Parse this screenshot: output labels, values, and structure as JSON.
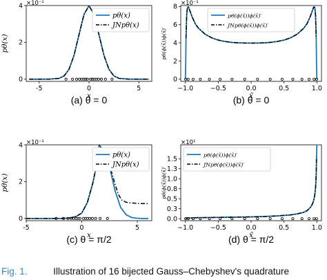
{
  "chart_data": [
    {
      "type": "line",
      "subcaption": "(a) θ = 0",
      "xlabel": "x",
      "ylabel": "pθ(x)",
      "xlim": [
        -6.3,
        6.3
      ],
      "ylim": [
        -0.12,
        4.0
      ],
      "scale_label": "×10⁻¹",
      "xticks": [
        -5,
        0,
        5
      ],
      "yticks": [
        0,
        2,
        4
      ],
      "legend": "top-right",
      "series": [
        {
          "name": "pθ(x)",
          "color": "#1f77b4",
          "style": "solid",
          "x": [
            -6,
            -5,
            -4,
            -3,
            -2.5,
            -2,
            -1.5,
            -1,
            -0.5,
            0,
            0.5,
            1,
            1.5,
            2,
            2.5,
            3,
            4,
            5,
            6
          ],
          "y": [
            0,
            0,
            0.001,
            0.044,
            0.175,
            0.54,
            1.295,
            2.42,
            3.521,
            3.989,
            3.521,
            2.42,
            1.295,
            0.54,
            0.175,
            0.044,
            0.001,
            0,
            0
          ]
        },
        {
          "name": "JNpθ(x)",
          "color": "#000000",
          "style": "dashdot",
          "x": [
            -6,
            -5,
            -4,
            -3,
            -2.5,
            -2,
            -1.5,
            -1,
            -0.5,
            0,
            0.5,
            1,
            1.5,
            2,
            2.5,
            3,
            4,
            5,
            6
          ],
          "y": [
            0,
            0,
            0.001,
            0.044,
            0.175,
            0.54,
            1.295,
            2.42,
            3.521,
            3.989,
            3.521,
            2.42,
            1.295,
            0.54,
            0.175,
            0.044,
            0.001,
            0,
            0
          ]
        }
      ],
      "nodes_x": [
        -2.31,
        -1.65,
        -1.25,
        -0.96,
        -0.72,
        -0.51,
        -0.33,
        -0.16,
        0.16,
        0.33,
        0.51,
        0.72,
        0.96,
        1.25,
        1.65,
        2.31
      ]
    },
    {
      "type": "line",
      "subcaption": "(b) θ = 0",
      "xlabel": "x̃",
      "ylabel": "pθ(ϕ(x̃))ϕ(x̃)′",
      "xlim": [
        -1.07,
        1.07
      ],
      "ylim": [
        -0.24,
        8.1
      ],
      "scale_label": "×10⁻¹",
      "xticks": [
        -1.0,
        -0.5,
        0.0,
        0.5,
        1.0
      ],
      "yticks": [
        0,
        2,
        4,
        6,
        8
      ],
      "legend": "top-center",
      "series": [
        {
          "name": "pθ(ϕ(x̃))ϕ(x̃)′",
          "color": "#1f77b4",
          "style": "solid",
          "x": [
            -1.0,
            -0.995,
            -0.99,
            -0.98,
            -0.97,
            -0.96,
            -0.95,
            -0.93,
            -0.9,
            -0.85,
            -0.8,
            -0.7,
            -0.6,
            -0.5,
            -0.4,
            -0.3,
            -0.2,
            -0.1,
            0,
            0.1,
            0.2,
            0.3,
            0.4,
            0.5,
            0.6,
            0.7,
            0.8,
            0.85,
            0.9,
            0.93,
            0.95,
            0.96,
            0.97,
            0.98,
            0.99,
            0.995,
            1.0
          ],
          "y": [
            0,
            1.5,
            4.5,
            7.0,
            7.8,
            7.95,
            7.9,
            7.5,
            6.9,
            6.1,
            5.6,
            4.95,
            4.55,
            4.3,
            4.15,
            4.05,
            4.0,
            3.98,
            3.97,
            3.98,
            4.0,
            4.05,
            4.15,
            4.3,
            4.55,
            4.95,
            5.6,
            6.1,
            6.9,
            7.5,
            7.9,
            7.95,
            7.8,
            7.0,
            4.5,
            1.5,
            0
          ]
        },
        {
          "name": "JNpθ(ϕ(x̃))ϕ(x̃)′",
          "color": "#000000",
          "style": "dashdot",
          "x": [
            -0.99,
            -0.98,
            -0.97,
            -0.96,
            -0.95,
            -0.93,
            -0.9,
            -0.85,
            -0.8,
            -0.7,
            -0.6,
            -0.5,
            -0.4,
            -0.3,
            -0.2,
            -0.1,
            0,
            0.1,
            0.2,
            0.3,
            0.4,
            0.5,
            0.6,
            0.7,
            0.8,
            0.85,
            0.9,
            0.93,
            0.95,
            0.96,
            0.97,
            0.98,
            0.99
          ],
          "y": [
            4.5,
            7.0,
            7.8,
            7.95,
            7.9,
            7.5,
            6.9,
            6.1,
            5.6,
            4.95,
            4.55,
            4.3,
            4.15,
            4.05,
            4.0,
            3.98,
            3.97,
            3.98,
            4.0,
            4.05,
            4.15,
            4.3,
            4.55,
            4.95,
            5.6,
            6.1,
            6.9,
            7.5,
            7.9,
            7.95,
            7.8,
            7.0,
            4.5
          ]
        }
      ],
      "nodes_x": [
        -0.995,
        -0.957,
        -0.882,
        -0.773,
        -0.634,
        -0.471,
        -0.29,
        -0.098,
        0.098,
        0.29,
        0.471,
        0.634,
        0.773,
        0.882,
        0.957,
        0.995
      ]
    },
    {
      "type": "line",
      "subcaption": "(c) θ = π/2",
      "xlabel": "x",
      "ylabel": "pθ(x)",
      "xlim": [
        -5.0,
        6.3
      ],
      "ylim": [
        -0.12,
        4.0
      ],
      "scale_label": "×10⁻¹",
      "xticks": [
        -5,
        0,
        5
      ],
      "yticks": [
        0,
        2,
        4
      ],
      "legend": "top-right",
      "series": [
        {
          "name": "pθ(x)",
          "color": "#1f77b4",
          "style": "solid",
          "x": [
            -5,
            -4,
            -3,
            -2,
            -1.5,
            -1,
            -0.5,
            0,
            0.5,
            1,
            1.2,
            1.57,
            2,
            2.5,
            3,
            3.5,
            4,
            4.5,
            5,
            5.5,
            6
          ],
          "y": [
            0,
            0,
            0,
            0.002,
            0.009,
            0.034,
            0.115,
            0.293,
            0.86,
            1.94,
            2.52,
            3.989,
            3.63,
            2.8,
            1.5,
            0.6,
            0.2,
            0.05,
            0.01,
            0,
            0
          ]
        },
        {
          "name": "JNpθ(x)",
          "color": "#000000",
          "style": "dashdot",
          "x": [
            -5,
            -4,
            -3,
            -2,
            -1.5,
            -1,
            -0.5,
            0,
            0.5,
            1,
            1.2,
            1.57,
            2,
            2.5,
            3,
            3.3,
            3.6,
            4,
            4.5,
            5,
            5.5,
            6
          ],
          "y": [
            0,
            0,
            0,
            0.002,
            0.009,
            0.034,
            0.115,
            0.293,
            0.86,
            1.94,
            2.52,
            3.989,
            3.63,
            2.9,
            1.85,
            1.3,
            1.0,
            0.88,
            0.84,
            0.82,
            0.81,
            0.8
          ]
        }
      ],
      "nodes_x": [
        -2.31,
        -1.65,
        -1.25,
        -0.96,
        -0.72,
        -0.51,
        -0.33,
        -0.16,
        0.16,
        0.33,
        0.51,
        0.72,
        0.96,
        1.25,
        1.65,
        2.31
      ]
    },
    {
      "type": "line",
      "subcaption": "(d) θ = π/2",
      "xlabel": "x̃",
      "ylabel": "pθ(ϕ(x̃))ϕ(x̃)′",
      "xlim": [
        -1.07,
        1.07
      ],
      "ylim": [
        -0.05,
        1.85
      ],
      "scale_label": "×10¹",
      "xticks": [
        -1.0,
        -0.5,
        0.0,
        0.5,
        1.0
      ],
      "yticks": [
        0.0,
        0.25,
        0.5,
        0.75,
        1.0,
        1.25,
        1.5
      ],
      "legend": "top-left",
      "series": [
        {
          "name": "pθ(ϕ(x̃))ϕ(x̃)′",
          "color": "#1f77b4",
          "style": "solid",
          "x": [
            -1.0,
            -0.9,
            -0.8,
            -0.6,
            -0.4,
            -0.2,
            0,
            0.2,
            0.4,
            0.6,
            0.7,
            0.8,
            0.85,
            0.9,
            0.93,
            0.95,
            0.96,
            0.97,
            0.98,
            0.985,
            0.99,
            0.995,
            1.0
          ],
          "y": [
            0.015,
            0.02,
            0.025,
            0.03,
            0.035,
            0.04,
            0.045,
            0.055,
            0.07,
            0.095,
            0.12,
            0.16,
            0.2,
            0.28,
            0.36,
            0.45,
            0.52,
            0.62,
            0.78,
            0.92,
            1.12,
            1.55,
            1.85
          ]
        },
        {
          "name": "JNpθ(ϕ(x̃))ϕ(x̃)′",
          "color": "#000000",
          "style": "dashdot",
          "x": [
            -1.0,
            -0.9,
            -0.8,
            -0.6,
            -0.4,
            -0.2,
            0,
            0.2,
            0.4,
            0.6,
            0.7,
            0.8,
            0.85,
            0.9,
            0.93,
            0.95,
            0.96,
            0.97,
            0.98,
            0.985,
            0.99,
            0.995
          ],
          "y": [
            0.015,
            0.02,
            0.025,
            0.03,
            0.035,
            0.04,
            0.045,
            0.055,
            0.07,
            0.095,
            0.12,
            0.16,
            0.2,
            0.28,
            0.36,
            0.45,
            0.52,
            0.62,
            0.78,
            0.92,
            1.12,
            1.55
          ]
        }
      ],
      "nodes_x": [
        -0.995,
        -0.957,
        -0.882,
        -0.773,
        -0.634,
        -0.471,
        -0.29,
        -0.098,
        0.098,
        0.29,
        0.471,
        0.634,
        0.773,
        0.882,
        0.957,
        0.995
      ]
    }
  ],
  "caption": {
    "label": "Fig. 1.",
    "text": "Illustration of 16 bijected Gauss–Chebyshev's quadrature"
  }
}
